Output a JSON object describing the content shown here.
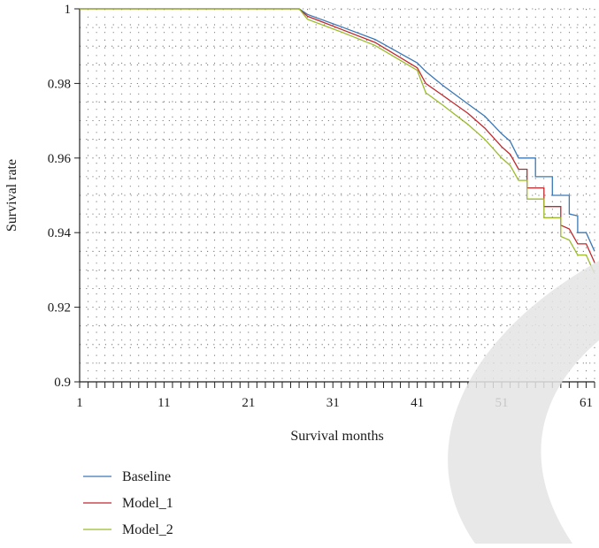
{
  "chart_data": {
    "type": "line",
    "title": "",
    "xlabel": "Survival months",
    "ylabel": "Survival rate",
    "xlim": [
      1,
      62
    ],
    "ylim": [
      0.9,
      1.0
    ],
    "xticks": [
      1,
      11,
      21,
      31,
      41,
      51,
      61
    ],
    "yticks": [
      0.9,
      0.92,
      0.94,
      0.96,
      0.98,
      1
    ],
    "ytick_labels": [
      "0.9",
      "0.92",
      "0.94",
      "0.96",
      "0.98",
      "1"
    ],
    "grid": true,
    "legend_position": "bottom-left",
    "series": [
      {
        "name": "Baseline",
        "color": "#3b78b6",
        "points": [
          [
            1,
            1.0
          ],
          [
            27,
            1.0
          ],
          [
            28,
            0.9985
          ],
          [
            32,
            0.9952
          ],
          [
            36,
            0.9918
          ],
          [
            41,
            0.9855
          ],
          [
            42,
            0.9832
          ],
          [
            44,
            0.9795
          ],
          [
            47,
            0.9745
          ],
          [
            49,
            0.9712
          ],
          [
            51,
            0.9665
          ],
          [
            52,
            0.9645
          ],
          [
            53,
            0.96
          ],
          [
            55,
            0.96
          ],
          [
            55,
            0.955
          ],
          [
            57,
            0.955
          ],
          [
            57,
            0.95
          ],
          [
            59,
            0.95
          ],
          [
            59,
            0.945
          ],
          [
            60,
            0.9445
          ],
          [
            60,
            0.94
          ],
          [
            61,
            0.94
          ],
          [
            62,
            0.935
          ]
        ]
      },
      {
        "name": "Model_1",
        "color": "#c0282d",
        "points": [
          [
            1,
            1.0
          ],
          [
            27,
            1.0
          ],
          [
            28,
            0.998
          ],
          [
            32,
            0.9945
          ],
          [
            36,
            0.991
          ],
          [
            41,
            0.9842
          ],
          [
            42,
            0.98
          ],
          [
            44,
            0.9768
          ],
          [
            47,
            0.972
          ],
          [
            49,
            0.968
          ],
          [
            51,
            0.963
          ],
          [
            52,
            0.961
          ],
          [
            53,
            0.957
          ],
          [
            54,
            0.957
          ],
          [
            54,
            0.952
          ],
          [
            56,
            0.952
          ],
          [
            56,
            0.947
          ],
          [
            58,
            0.947
          ],
          [
            58,
            0.942
          ],
          [
            59,
            0.941
          ],
          [
            60,
            0.937
          ],
          [
            61,
            0.937
          ],
          [
            62,
            0.932
          ]
        ]
      },
      {
        "name": "Model_2",
        "color": "#9bbb2a",
        "points": [
          [
            1,
            1.0
          ],
          [
            27,
            1.0
          ],
          [
            28,
            0.9972
          ],
          [
            32,
            0.9938
          ],
          [
            36,
            0.9902
          ],
          [
            41,
            0.9835
          ],
          [
            42,
            0.9775
          ],
          [
            44,
            0.9742
          ],
          [
            47,
            0.969
          ],
          [
            49,
            0.965
          ],
          [
            51,
            0.96
          ],
          [
            52,
            0.958
          ],
          [
            53,
            0.954
          ],
          [
            54,
            0.954
          ],
          [
            54,
            0.949
          ],
          [
            56,
            0.949
          ],
          [
            56,
            0.944
          ],
          [
            58,
            0.944
          ],
          [
            58,
            0.939
          ],
          [
            59,
            0.938
          ],
          [
            60,
            0.934
          ],
          [
            61,
            0.934
          ],
          [
            62,
            0.929
          ]
        ]
      }
    ]
  }
}
